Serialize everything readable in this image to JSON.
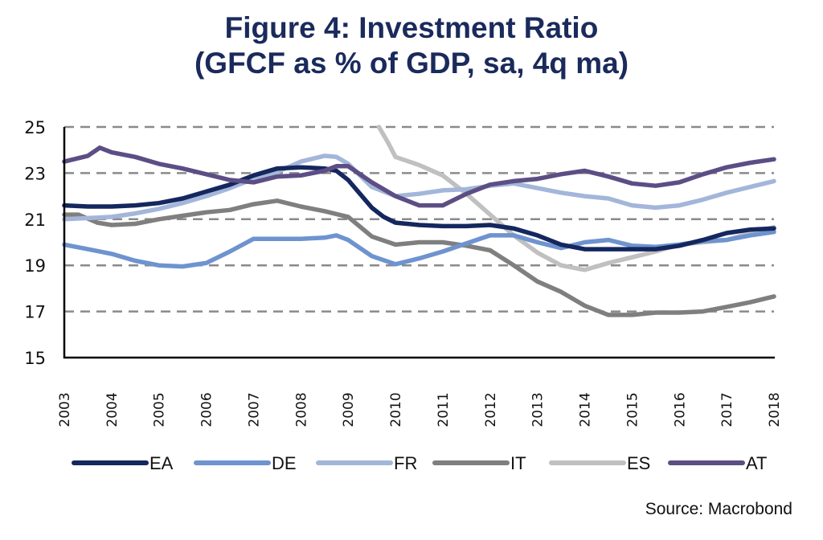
{
  "chart_data": {
    "type": "line",
    "title": "Figure 4: Investment Ratio",
    "subtitle": "(GFCF as % of GDP, sa, 4q ma)",
    "xlabel": "",
    "ylabel": "",
    "x_ticks": [
      "2003",
      "2004",
      "2005",
      "2006",
      "2007",
      "2008",
      "2009",
      "2010",
      "2011",
      "2012",
      "2013",
      "2014",
      "2015",
      "2016",
      "2017",
      "2018"
    ],
    "xlim": [
      2003,
      2018
    ],
    "y_ticks": [
      15,
      17,
      19,
      21,
      23,
      25
    ],
    "ylim": [
      15,
      25
    ],
    "grid": "horizontal dashed",
    "legend_position": "bottom",
    "source": "Source: Macrobond",
    "series": [
      {
        "name": "EA",
        "color": "#14275e",
        "x": [
          2003,
          2003.5,
          2004,
          2004.5,
          2005,
          2005.5,
          2006,
          2006.5,
          2007,
          2007.5,
          2008,
          2008.5,
          2008.75,
          2009,
          2009.25,
          2009.5,
          2009.75,
          2010,
          2010.5,
          2011,
          2011.5,
          2012,
          2012.5,
          2013,
          2013.5,
          2014,
          2014.5,
          2015,
          2015.5,
          2016,
          2016.5,
          2017,
          2017.5,
          2018
        ],
        "y": [
          21.6,
          21.55,
          21.55,
          21.6,
          21.7,
          21.9,
          22.2,
          22.5,
          22.9,
          23.2,
          23.25,
          23.2,
          23.1,
          22.7,
          22.1,
          21.5,
          21.1,
          20.85,
          20.75,
          20.7,
          20.7,
          20.75,
          20.6,
          20.3,
          19.9,
          19.7,
          19.7,
          19.7,
          19.7,
          19.85,
          20.1,
          20.4,
          20.55,
          20.6
        ]
      },
      {
        "name": "DE",
        "color": "#6e93cf",
        "x": [
          2003,
          2003.5,
          2004,
          2004.5,
          2005,
          2005.5,
          2006,
          2006.5,
          2007,
          2007.5,
          2008,
          2008.5,
          2008.75,
          2009,
          2009.5,
          2010,
          2010.5,
          2011,
          2011.5,
          2012,
          2012.5,
          2013,
          2013.5,
          2014,
          2014.5,
          2015,
          2015.5,
          2016,
          2016.5,
          2017,
          2017.5,
          2018
        ],
        "y": [
          19.9,
          19.7,
          19.5,
          19.2,
          19.0,
          18.95,
          19.1,
          19.6,
          20.15,
          20.15,
          20.15,
          20.2,
          20.3,
          20.1,
          19.4,
          19.05,
          19.3,
          19.6,
          19.95,
          20.3,
          20.3,
          20.0,
          19.75,
          20.0,
          20.1,
          19.85,
          19.8,
          19.9,
          20.05,
          20.1,
          20.3,
          20.45
        ]
      },
      {
        "name": "FR",
        "color": "#a3b6da",
        "x": [
          2003,
          2003.5,
          2004,
          2004.5,
          2005,
          2005.5,
          2006,
          2006.5,
          2007,
          2007.5,
          2008,
          2008.5,
          2008.75,
          2009,
          2009.5,
          2010,
          2010.5,
          2011,
          2011.5,
          2012,
          2012.5,
          2013,
          2013.5,
          2014,
          2014.5,
          2015,
          2015.5,
          2016,
          2016.5,
          2017,
          2017.5,
          2018
        ],
        "y": [
          21.0,
          21.05,
          21.1,
          21.25,
          21.45,
          21.7,
          22.0,
          22.35,
          22.75,
          23.05,
          23.5,
          23.75,
          23.7,
          23.4,
          22.4,
          22.0,
          22.1,
          22.25,
          22.3,
          22.45,
          22.55,
          22.35,
          22.15,
          22.0,
          21.9,
          21.6,
          21.5,
          21.6,
          21.85,
          22.15,
          22.4,
          22.65
        ]
      },
      {
        "name": "IT",
        "color": "#7f7f7f",
        "x": [
          2003,
          2003.3,
          2003.7,
          2004,
          2004.5,
          2005,
          2005.5,
          2006,
          2006.5,
          2007,
          2007.5,
          2008,
          2008.5,
          2009,
          2009.5,
          2010,
          2010.5,
          2011,
          2011.5,
          2012,
          2012.5,
          2013,
          2013.5,
          2014,
          2014.5,
          2015,
          2015.5,
          2016,
          2016.5,
          2017,
          2017.5,
          2018
        ],
        "y": [
          21.2,
          21.2,
          20.85,
          20.75,
          20.8,
          21.0,
          21.15,
          21.3,
          21.4,
          21.65,
          21.8,
          21.55,
          21.35,
          21.1,
          20.25,
          19.9,
          20.0,
          20.0,
          19.85,
          19.65,
          19.0,
          18.3,
          17.85,
          17.25,
          16.85,
          16.85,
          16.95,
          16.95,
          17.0,
          17.2,
          17.4,
          17.65
        ]
      },
      {
        "name": "ES",
        "color": "#c0c0c0",
        "x": [
          2009.65,
          2009.85,
          2010,
          2010.5,
          2011,
          2011.5,
          2012,
          2012.5,
          2013,
          2013.5,
          2014,
          2014.5,
          2015,
          2015.5,
          2016,
          2016.5,
          2017,
          2017.5,
          2018
        ],
        "y": [
          25.0,
          24.3,
          23.7,
          23.35,
          22.9,
          22.1,
          21.2,
          20.3,
          19.55,
          19.0,
          18.8,
          19.1,
          19.35,
          19.6,
          19.9,
          20.0,
          20.1,
          20.4,
          20.65
        ]
      },
      {
        "name": "AT",
        "color": "#5c4e85",
        "x": [
          2003,
          2003.5,
          2003.75,
          2004,
          2004.5,
          2005,
          2005.5,
          2006,
          2006.5,
          2007,
          2007.5,
          2008,
          2008.5,
          2008.75,
          2009,
          2009.5,
          2010,
          2010.5,
          2011,
          2011.5,
          2012,
          2012.5,
          2013,
          2013.5,
          2014,
          2014.5,
          2015,
          2015.5,
          2016,
          2016.5,
          2017,
          2017.5,
          2018
        ],
        "y": [
          23.5,
          23.75,
          24.1,
          23.9,
          23.7,
          23.4,
          23.2,
          22.95,
          22.7,
          22.6,
          22.85,
          22.9,
          23.1,
          23.3,
          23.3,
          22.6,
          22.0,
          21.6,
          21.6,
          22.1,
          22.5,
          22.65,
          22.75,
          22.95,
          23.1,
          22.85,
          22.55,
          22.45,
          22.6,
          22.95,
          23.25,
          23.45,
          23.6
        ]
      }
    ]
  }
}
